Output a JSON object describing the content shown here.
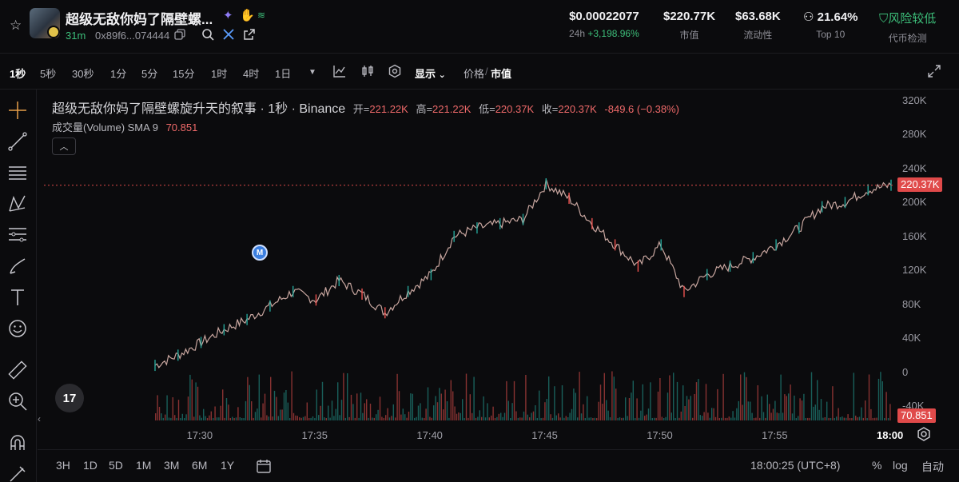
{
  "header": {
    "token_name": "超级无敌你妈了隔壁螺...",
    "age": "31m",
    "address": "0x89f6...074444",
    "stats": [
      {
        "value": "$0.00022077",
        "label_prefix": "24h",
        "label": "+3,198.96%"
      },
      {
        "value": "$220.77K",
        "label": "市值"
      },
      {
        "value": "$63.68K",
        "label": "流动性"
      },
      {
        "value": "21.64%",
        "label": "Top 10"
      },
      {
        "value": "风险较低",
        "label": "代币检测"
      }
    ]
  },
  "toolbar": {
    "timeframes": [
      "1秒",
      "5秒",
      "30秒",
      "1分",
      "5分",
      "15分",
      "1时",
      "4时",
      "1日"
    ],
    "active_timeframe": "1秒",
    "display_label": "显示",
    "price_label": "价格",
    "mcap_label": "市值"
  },
  "chart": {
    "title": "超级无敌你妈了隔壁螺旋升天的叙事 · 1秒 · Binance",
    "ohlc": [
      {
        "k": "开=",
        "v": "221.22K"
      },
      {
        "k": "高=",
        "v": "221.22K"
      },
      {
        "k": "低=",
        "v": "220.37K"
      },
      {
        "k": "收=",
        "v": "220.37K"
      }
    ],
    "change": "-849.6 (−0.38%)",
    "volume_label": "成交量(Volume) SMA 9",
    "volume_value": "70.851",
    "marker": "M",
    "logo_text": "17",
    "current_price_tag": "220.37K",
    "current_volume_tag": "70.851",
    "colors": {
      "up": "#26a69a",
      "down": "#ef5350",
      "line": "#c9a7a0",
      "tag": "#e04a4a"
    }
  },
  "chart_data": {
    "type": "line",
    "y_axis_ticks": [
      "320K",
      "280K",
      "240K",
      "200K",
      "160K",
      "120K",
      "80K",
      "40K",
      "0",
      "-40K"
    ],
    "x_axis_ticks": [
      "17:30",
      "17:35",
      "17:40",
      "17:45",
      "17:50",
      "17:55",
      "18:00"
    ],
    "ylim": [
      -40000,
      320000
    ],
    "x": [
      "17:28",
      "17:29",
      "17:30",
      "17:31",
      "17:32",
      "17:33",
      "17:34",
      "17:35",
      "17:36",
      "17:37",
      "17:38",
      "17:39",
      "17:40",
      "17:41",
      "17:42",
      "17:43",
      "17:44",
      "17:45",
      "17:46",
      "17:47",
      "17:48",
      "17:49",
      "17:50",
      "17:51",
      "17:52",
      "17:53",
      "17:54",
      "17:55",
      "17:56",
      "17:57",
      "17:58",
      "17:59",
      "18:00"
    ],
    "series": [
      {
        "values": [
          8000,
          20000,
          35000,
          50000,
          62000,
          78000,
          95000,
          85000,
          108000,
          92000,
          70000,
          95000,
          115000,
          160000,
          170000,
          175000,
          180000,
          222000,
          205000,
          175000,
          150000,
          125000,
          150000,
          95000,
          115000,
          125000,
          135000,
          150000,
          170000,
          195000,
          200000,
          215000,
          220370
        ]
      }
    ],
    "current_value": 220370
  },
  "footer": {
    "ranges": [
      "3H",
      "1D",
      "5D",
      "1M",
      "3M",
      "6M",
      "1Y"
    ],
    "time": "18:00:25 (UTC+8)",
    "percent": "%",
    "log": "log",
    "auto": "自动"
  }
}
